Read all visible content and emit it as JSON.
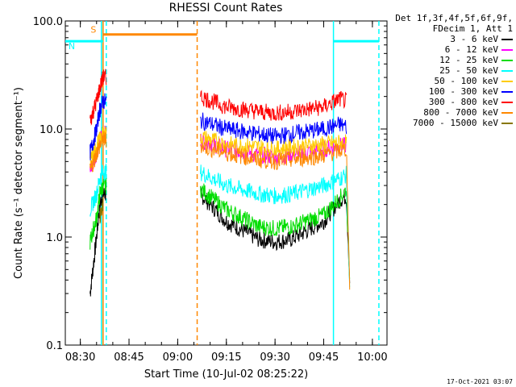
{
  "chart_data": {
    "type": "line",
    "title": "RHESSI Count Rates",
    "xlabel": "Start Time (10-Jul-02 08:25:22)",
    "ylabel": "Count Rate (s⁻¹ detector segment⁻¹)",
    "yscale": "log",
    "ylim": [
      0.1,
      100
    ],
    "xlim": [
      "08:25:22",
      "10:04:30"
    ],
    "x_ticks": [
      "08:30",
      "08:45",
      "09:00",
      "09:15",
      "09:30",
      "09:45",
      "10:00"
    ],
    "y_ticks": [
      "0.1",
      "1.0",
      "10.0",
      "100.0"
    ],
    "legend_header": [
      "Det 1f,3f,4f,5f,6f,9f,",
      "FDecim 1, Att 1"
    ],
    "legend_position": "right",
    "series": [
      {
        "name": "3 - 6 keV",
        "color": "#000000",
        "segments": [
          {
            "x": [
              "08:33:00",
              "08:35:00",
              "08:36:00",
              "08:37:00",
              "08:38:00"
            ],
            "y": [
              0.3,
              1.0,
              2.0,
              2.5,
              2.5
            ]
          },
          {
            "x": [
              "09:07:00",
              "09:15:00",
              "09:25:00",
              "09:30:00",
              "09:35:00",
              "09:45:00",
              "09:50:00",
              "09:52:00",
              "09:53:00"
            ],
            "y": [
              2.5,
              1.4,
              0.95,
              0.9,
              0.95,
              1.4,
              2.2,
              2.4,
              0.4
            ]
          }
        ]
      },
      {
        "name": "6 - 12 keV",
        "color": "#ff00ff",
        "segments": [
          {
            "x": [
              "08:33:00",
              "08:35:00",
              "08:36:00",
              "08:37:00",
              "08:38:00"
            ],
            "y": [
              4.0,
              6.0,
              8.0,
              9.0,
              9.0
            ]
          },
          {
            "x": [
              "09:07:00",
              "09:15:00",
              "09:25:00",
              "09:30:00",
              "09:35:00",
              "09:45:00",
              "09:50:00",
              "09:52:00"
            ],
            "y": [
              8.0,
              6.5,
              5.8,
              5.5,
              5.8,
              6.5,
              7.0,
              7.0
            ]
          }
        ]
      },
      {
        "name": "12 - 25 keV",
        "color": "#00dd00",
        "segments": [
          {
            "x": [
              "08:33:00",
              "08:35:00",
              "08:36:00",
              "08:37:00",
              "08:38:00"
            ],
            "y": [
              0.9,
              1.5,
              2.5,
              3.0,
              3.0
            ]
          },
          {
            "x": [
              "09:07:00",
              "09:15:00",
              "09:25:00",
              "09:30:00",
              "09:35:00",
              "09:45:00",
              "09:50:00",
              "09:52:00",
              "09:53:00"
            ],
            "y": [
              2.8,
              1.8,
              1.25,
              1.2,
              1.25,
              1.6,
              2.3,
              2.8,
              0.4
            ]
          }
        ]
      },
      {
        "name": "25 - 50 keV",
        "color": "#00ffff",
        "segments": [
          {
            "x": [
              "08:33:00",
              "08:35:00",
              "08:36:00",
              "08:37:00",
              "08:38:00"
            ],
            "y": [
              1.8,
              2.5,
              3.5,
              4.0,
              4.0
            ]
          },
          {
            "x": [
              "09:07:00",
              "09:15:00",
              "09:25:00",
              "09:30:00",
              "09:35:00",
              "09:45:00",
              "09:50:00",
              "09:52:00",
              "09:53:00"
            ],
            "y": [
              4.0,
              3.0,
              2.5,
              2.4,
              2.5,
              3.0,
              3.5,
              3.8,
              0.35
            ]
          }
        ]
      },
      {
        "name": "50 - 100 keV",
        "color": "#ffcc00",
        "segments": [
          {
            "x": [
              "08:33:00",
              "08:35:00",
              "08:36:00",
              "08:37:00",
              "08:38:00"
            ],
            "y": [
              5.0,
              7.0,
              8.0,
              9.0,
              9.0
            ]
          },
          {
            "x": [
              "09:07:00",
              "09:15:00",
              "09:25:00",
              "09:30:00",
              "09:35:00",
              "09:45:00",
              "09:50:00",
              "09:52:00"
            ],
            "y": [
              8.5,
              7.2,
              6.8,
              6.5,
              6.8,
              7.2,
              7.5,
              7.5
            ]
          }
        ]
      },
      {
        "name": "100 - 300 keV",
        "color": "#0000ff",
        "segments": [
          {
            "x": [
              "08:33:00",
              "08:35:00",
              "08:36:00",
              "08:37:00",
              "08:38:00"
            ],
            "y": [
              6.0,
              10.0,
              15.0,
              18.0,
              18.0
            ]
          },
          {
            "x": [
              "09:07:00",
              "09:15:00",
              "09:25:00",
              "09:30:00",
              "09:35:00",
              "09:45:00",
              "09:50:00",
              "09:52:00"
            ],
            "y": [
              12.0,
              10.0,
              9.0,
              8.5,
              9.0,
              10.0,
              11.0,
              10.5
            ]
          }
        ]
      },
      {
        "name": "300 - 800 keV",
        "color": "#ff0000",
        "segments": [
          {
            "x": [
              "08:33:00",
              "08:35:00",
              "08:36:00",
              "08:37:00",
              "08:38:00"
            ],
            "y": [
              12.0,
              18.0,
              24.0,
              30.0,
              30.0
            ]
          },
          {
            "x": [
              "09:07:00",
              "09:15:00",
              "09:25:00",
              "09:30:00",
              "09:35:00",
              "09:45:00",
              "09:50:00",
              "09:52:00"
            ],
            "y": [
              20.0,
              16.0,
              14.5,
              14.0,
              14.5,
              16.0,
              19.0,
              18.0
            ]
          }
        ]
      },
      {
        "name": "800 - 7000 keV",
        "color": "#ff8800",
        "segments": [
          {
            "x": [
              "08:33:00",
              "08:35:00",
              "08:36:00",
              "08:37:00",
              "08:38:00"
            ],
            "y": [
              4.0,
              6.0,
              7.0,
              8.0,
              8.0
            ]
          },
          {
            "x": [
              "09:07:00",
              "09:15:00",
              "09:25:00",
              "09:30:00",
              "09:35:00",
              "09:45:00",
              "09:50:00",
              "09:52:00",
              "09:53:00"
            ],
            "y": [
              7.0,
              6.0,
              5.2,
              5.0,
              5.2,
              5.7,
              6.3,
              6.5,
              0.35
            ]
          }
        ]
      },
      {
        "name": "7000 - 15000 keV",
        "color": "#887700",
        "segments": [
          {
            "x": [
              "08:36:00",
              "08:37:00"
            ],
            "y": [
              1.5,
              2.0
            ]
          }
        ]
      }
    ],
    "annotations": [
      {
        "label": "S",
        "type": "saa_flag",
        "color": "#ff8800",
        "x_start": "08:37:00",
        "x_end": "09:06:00",
        "y": 75
      },
      {
        "label": "N",
        "type": "night_flag",
        "color": "#00ffff",
        "x_start": "08:25:22",
        "x_end": "08:37:00",
        "y": 65
      },
      {
        "label": "",
        "type": "night_flag",
        "color": "#00ffff",
        "x_start": "09:48:00",
        "x_end": "10:02:00",
        "y": 65
      }
    ],
    "vertical_lines": [
      {
        "x": "08:36:30",
        "color": "#00ffff",
        "style": "solid"
      },
      {
        "x": "08:37:00",
        "color": "#ff8800",
        "style": "solid"
      },
      {
        "x": "08:38:00",
        "color": "#00ffff",
        "style": "dashed"
      },
      {
        "x": "09:06:00",
        "color": "#ff8800",
        "style": "dashed"
      },
      {
        "x": "09:48:00",
        "color": "#00ffff",
        "style": "solid"
      },
      {
        "x": "10:02:00",
        "color": "#00ffff",
        "style": "dashed"
      }
    ]
  },
  "timestamp": "17-Oct-2021 03:07"
}
